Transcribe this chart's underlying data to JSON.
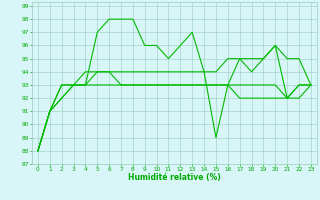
{
  "line1": [
    88,
    91,
    93,
    93,
    93,
    97,
    98,
    98,
    98,
    96,
    96,
    95,
    96,
    97,
    94,
    89,
    93,
    95,
    94,
    95,
    96,
    95,
    95,
    93
  ],
  "line2": [
    88,
    91,
    93,
    93,
    94,
    94,
    94,
    93,
    93,
    93,
    93,
    93,
    93,
    93,
    93,
    93,
    93,
    93,
    93,
    93,
    93,
    92,
    93,
    93
  ],
  "line3": [
    88,
    91,
    92,
    93,
    93,
    93,
    93,
    93,
    93,
    93,
    93,
    93,
    93,
    93,
    93,
    93,
    93,
    92,
    92,
    92,
    92,
    92,
    92,
    93
  ],
  "line4": [
    88,
    91,
    92,
    93,
    93,
    94,
    94,
    94,
    94,
    94,
    94,
    94,
    94,
    94,
    94,
    94,
    95,
    95,
    95,
    95,
    96,
    92,
    93,
    93
  ],
  "xmin": 0,
  "xmax": 23,
  "ymin": 87,
  "ymax": 99,
  "xlabel": "Humidité relative (%)",
  "line_color": "#00BB00",
  "bg_color": "#D8F5F8",
  "grid_color": "#99CCBB",
  "tick_color": "#00AA00",
  "label_color": "#00AA00"
}
